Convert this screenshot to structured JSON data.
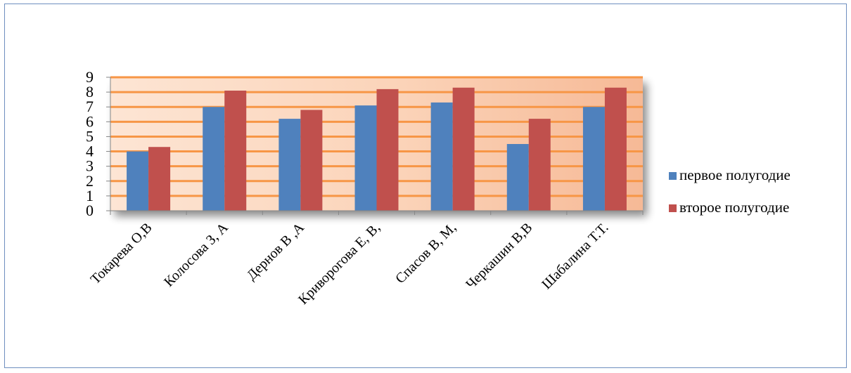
{
  "chart_data": {
    "type": "bar",
    "categories": [
      "Токарева О,В",
      "Колосова З, А",
      "Дернов В ,А",
      "Криворогова Е, В,",
      "Спасов В, М,",
      "Черкашин В,В",
      "Шабалина Т.Т."
    ],
    "series": [
      {
        "name": "первое полугодие",
        "color": "#4f81bd",
        "values": [
          4,
          7,
          6.2,
          7.1,
          7.3,
          4.5,
          7
        ]
      },
      {
        "name": "второе полугодие",
        "color": "#c0504d",
        "values": [
          4.3,
          8.1,
          6.8,
          8.2,
          8.3,
          6.2,
          8.3
        ]
      }
    ],
    "ylim": [
      0,
      9
    ],
    "yticks": [
      "0",
      "1",
      "2",
      "3",
      "4",
      "5",
      "6",
      "7",
      "8",
      "9"
    ],
    "grid": true,
    "gridline_color": "#f79646",
    "plot_background": "gradient peach",
    "legend_position": "right",
    "title": "",
    "xlabel": "",
    "ylabel": ""
  }
}
